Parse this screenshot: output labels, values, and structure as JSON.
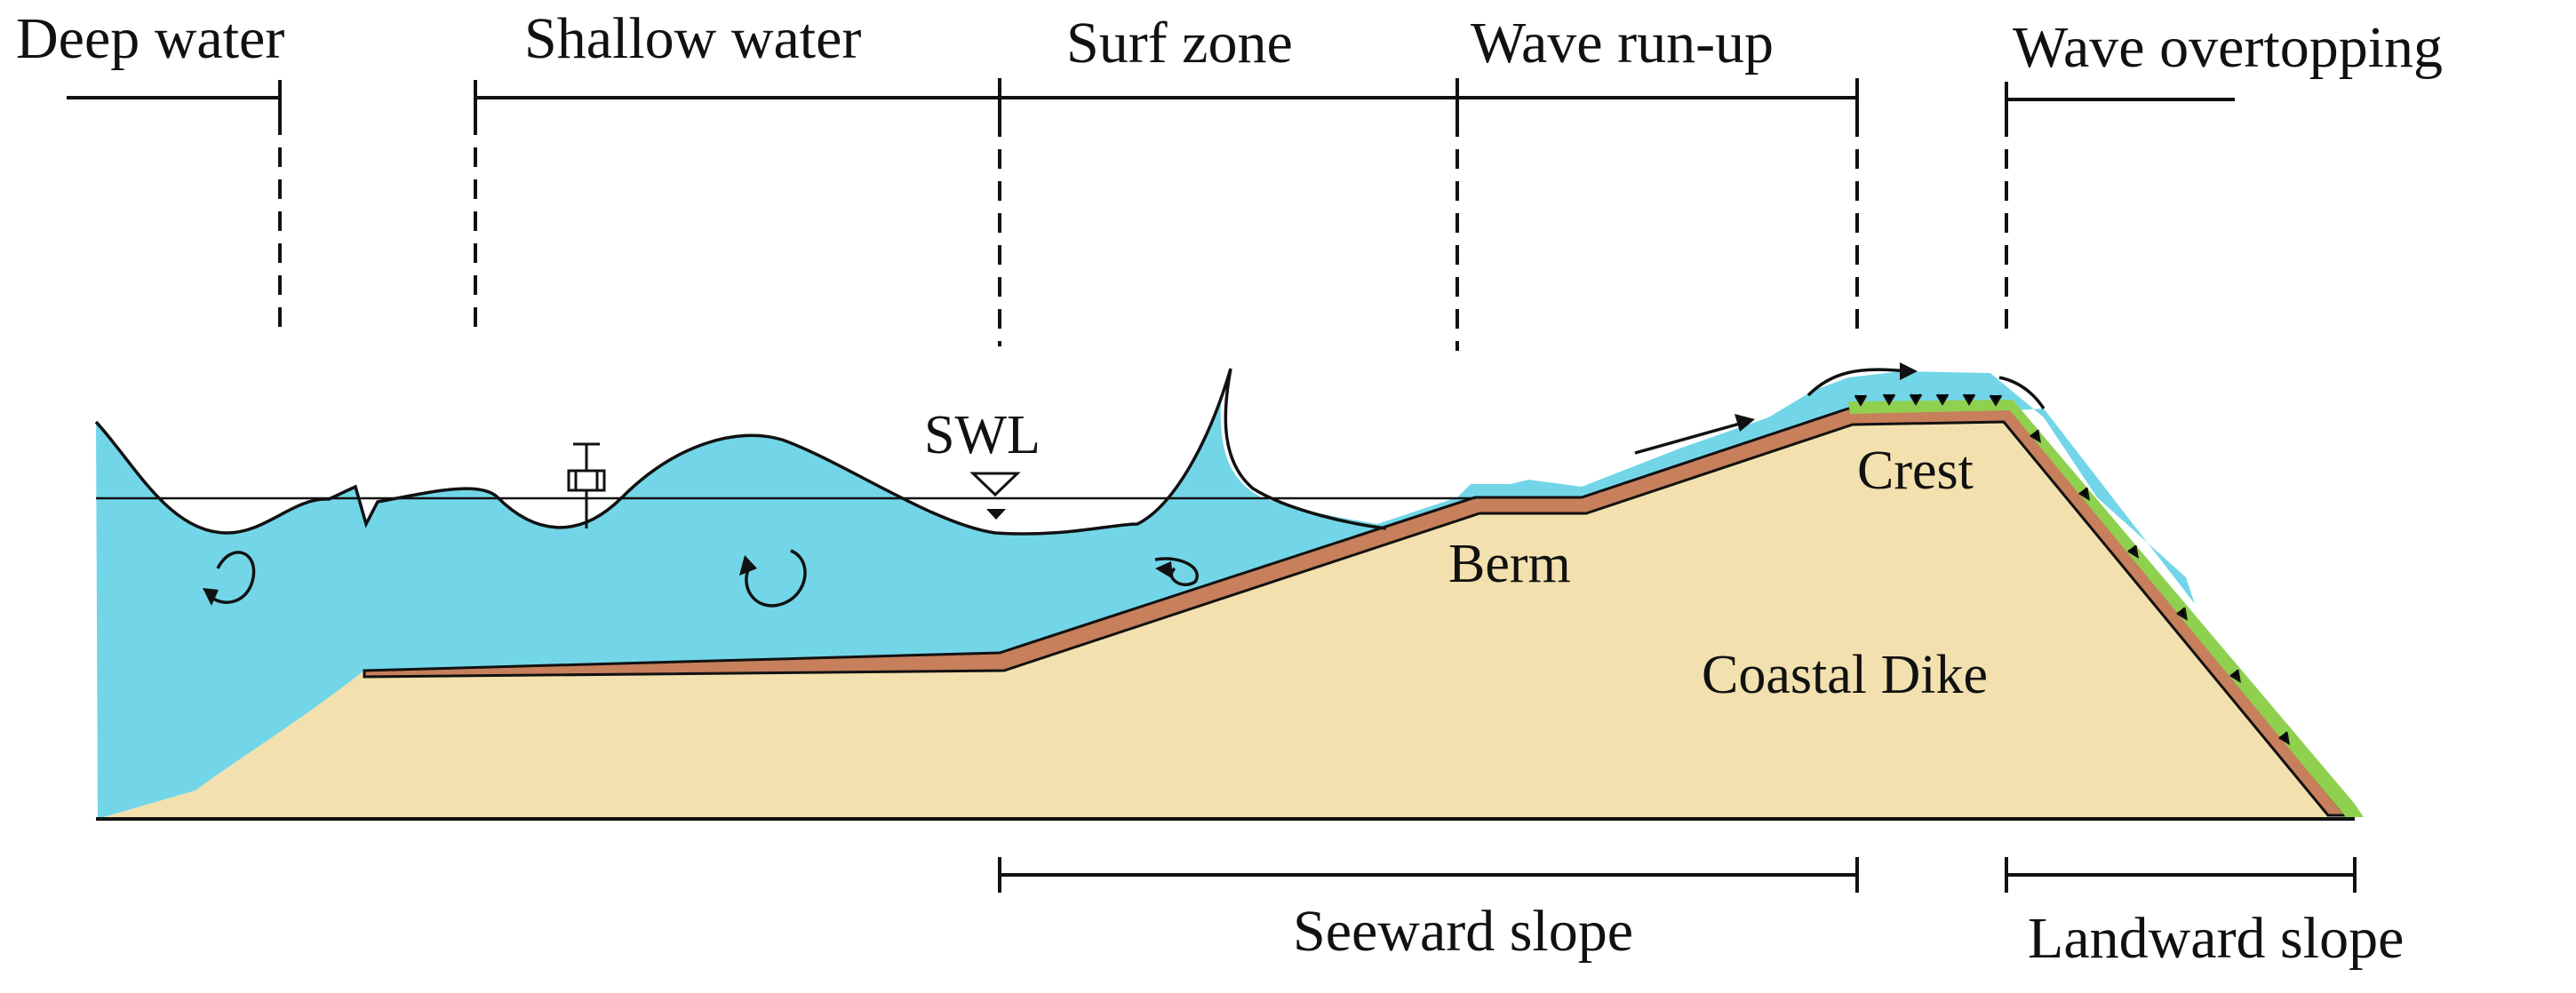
{
  "zones": {
    "deep_water": "Deep water",
    "shallow_water": "Shallow water",
    "surf_zone": "Surf zone",
    "wave_run_up": "Wave run-up",
    "wave_overtopping": "Wave overtopping"
  },
  "parts": {
    "swl": "SWL",
    "berm": "Berm",
    "crest": "Crest",
    "coastal_dike": "Coastal Dike"
  },
  "slopes": {
    "seaward": "Seeward slope",
    "landward": "Landward slope"
  },
  "colors": {
    "water": "#72d6e8",
    "dike_body": "#f2e0ae",
    "revetment": "#c77f5c",
    "grass": "#8fd14f",
    "line": "#111111"
  }
}
